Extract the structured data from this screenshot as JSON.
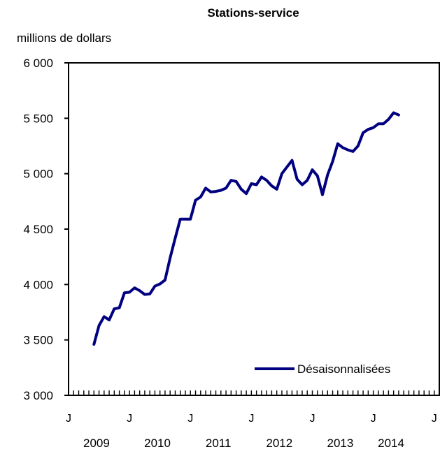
{
  "chart_data": {
    "type": "line",
    "title": "Stations-service",
    "ylabel": "millions de dollars",
    "xlabel": "",
    "ylim": [
      3000,
      6000
    ],
    "y_ticks": [
      3000,
      3500,
      4000,
      4500,
      5000,
      5500,
      6000
    ],
    "y_tick_labels": [
      "3 000",
      "3 500",
      "4 000",
      "4 500",
      "5 000",
      "5 500",
      "6 000"
    ],
    "x_month_labels": [
      {
        "index": 0,
        "label": "J"
      },
      {
        "index": 12,
        "label": "J"
      },
      {
        "index": 24,
        "label": "J"
      },
      {
        "index": 36,
        "label": "J"
      },
      {
        "index": 48,
        "label": "J"
      },
      {
        "index": 60,
        "label": "J"
      },
      {
        "index": 72,
        "label": "J"
      }
    ],
    "x_year_labels": [
      {
        "label": "2009",
        "center_index": 5.5
      },
      {
        "label": "2010",
        "center_index": 17.5
      },
      {
        "label": "2011",
        "center_index": 29.5
      },
      {
        "label": "2012",
        "center_index": 41.5
      },
      {
        "label": "2013",
        "center_index": 53.5
      },
      {
        "label": "2014",
        "center_index": 63.5
      }
    ],
    "x_start": "2009-06",
    "x_end": "2014-06",
    "legend_position": "bottom-right",
    "grid": false,
    "series": [
      {
        "name": "Désaisonnalisées",
        "color": "#000080",
        "x": [
          "2009-06",
          "2009-07",
          "2009-08",
          "2009-09",
          "2009-10",
          "2009-11",
          "2009-12",
          "2010-01",
          "2010-02",
          "2010-03",
          "2010-04",
          "2010-05",
          "2010-06",
          "2010-07",
          "2010-08",
          "2010-09",
          "2010-10",
          "2010-11",
          "2010-12",
          "2011-01",
          "2011-02",
          "2011-03",
          "2011-04",
          "2011-05",
          "2011-06",
          "2011-07",
          "2011-08",
          "2011-09",
          "2011-10",
          "2011-11",
          "2011-12",
          "2012-01",
          "2012-02",
          "2012-03",
          "2012-04",
          "2012-05",
          "2012-06",
          "2012-07",
          "2012-08",
          "2012-09",
          "2012-10",
          "2012-11",
          "2012-12",
          "2013-01",
          "2013-02",
          "2013-03",
          "2013-04",
          "2013-05",
          "2013-06",
          "2013-07",
          "2013-08",
          "2013-09",
          "2013-10",
          "2013-11",
          "2013-12",
          "2014-01",
          "2014-02",
          "2014-03",
          "2014-04",
          "2014-05",
          "2014-06"
        ],
        "values": [
          3460,
          3630,
          3710,
          3680,
          3780,
          3790,
          3925,
          3930,
          3970,
          3945,
          3910,
          3915,
          3985,
          4005,
          4040,
          4240,
          4420,
          4590,
          4590,
          4590,
          4760,
          4790,
          4870,
          4835,
          4840,
          4850,
          4870,
          4940,
          4930,
          4860,
          4820,
          4910,
          4900,
          4970,
          4940,
          4890,
          4860,
          5000,
          5060,
          5120,
          4950,
          4900,
          4940,
          5035,
          4980,
          4810,
          4990,
          5110,
          5270,
          5235,
          5215,
          5200,
          5250,
          5370,
          5400,
          5415,
          5450,
          5450,
          5490,
          5550,
          5530
        ]
      }
    ]
  }
}
